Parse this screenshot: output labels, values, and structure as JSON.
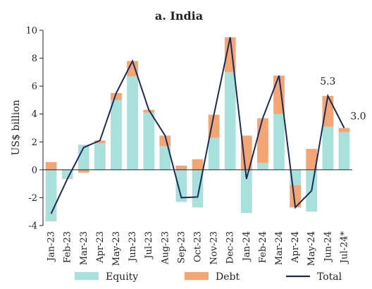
{
  "chart_data": {
    "type": "bar",
    "title": "a. India",
    "ylabel": "US$ billion",
    "xlabel": "",
    "ylim": [
      -4,
      10
    ],
    "yticks": [
      -4,
      -2,
      0,
      2,
      4,
      6,
      8,
      10
    ],
    "categories": [
      "Jan-23",
      "Feb-23",
      "Mar-23",
      "Apr-23",
      "May-23",
      "Jun-23",
      "Jul-23",
      "Aug-23",
      "Sep-23",
      "Oct-23",
      "Nov-23",
      "Dec-23",
      "Jan-24",
      "Feb-24",
      "Mar-24",
      "Apr-24",
      "May-24",
      "Jun-24",
      "Jul-24*"
    ],
    "series": [
      {
        "name": "Equity",
        "kind": "stacked-bar",
        "color": "#a8e1dc",
        "values": [
          -3.7,
          -0.6,
          1.8,
          1.9,
          5.0,
          6.7,
          4.1,
          1.7,
          -2.3,
          -2.7,
          2.3,
          7.0,
          -3.1,
          0.5,
          4.0,
          -1.1,
          -3.0,
          3.1,
          2.7
        ]
      },
      {
        "name": "Debt",
        "kind": "stacked-bar",
        "color": "#f4a574",
        "values": [
          0.55,
          -0.05,
          -0.2,
          0.2,
          0.5,
          1.1,
          0.2,
          0.75,
          0.3,
          0.75,
          1.65,
          2.5,
          2.45,
          3.2,
          2.75,
          -1.6,
          1.5,
          2.2,
          0.3
        ]
      },
      {
        "name": "Total",
        "kind": "line",
        "color": "#1c2a5a",
        "values": [
          -3.15,
          -0.65,
          1.6,
          2.1,
          5.5,
          7.8,
          4.3,
          2.45,
          -2.0,
          -1.95,
          3.95,
          9.5,
          -0.65,
          3.7,
          6.75,
          -2.7,
          -1.5,
          5.3,
          3.0
        ]
      }
    ],
    "annotations": [
      {
        "text": "5.3",
        "category": "Jun-24"
      },
      {
        "text": "3.0",
        "category": "Jul-24*"
      }
    ],
    "grid": false,
    "legend": {
      "placement": "bottom",
      "items": [
        "Equity",
        "Debt",
        "Total"
      ]
    }
  }
}
